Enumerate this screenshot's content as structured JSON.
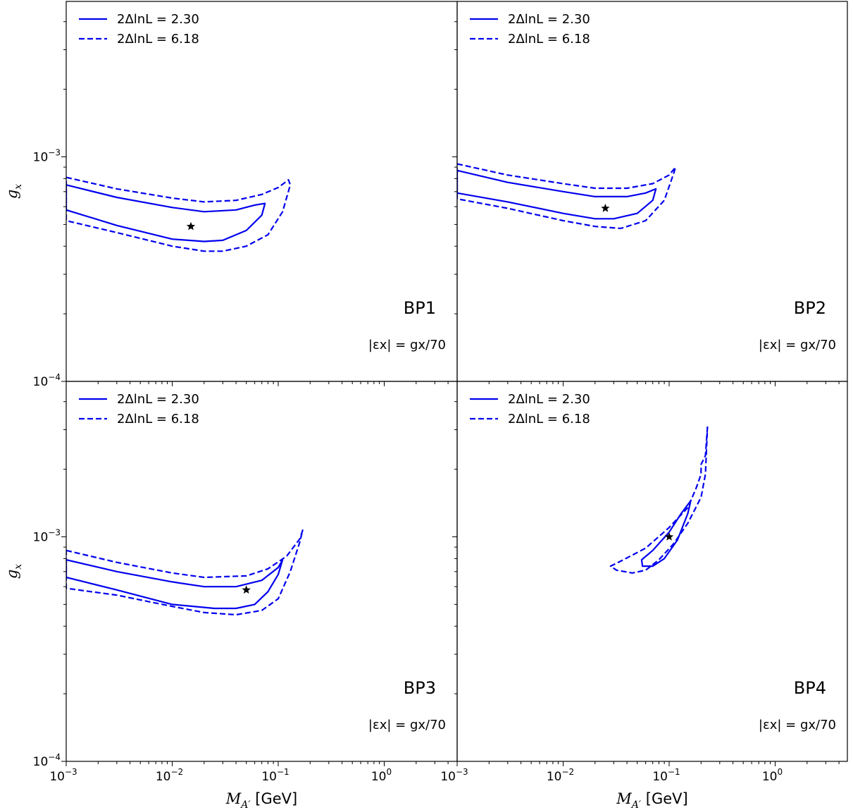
{
  "chart_data": [
    {
      "type": "line",
      "label": "BP1",
      "annotation": "|εx| = gx/70",
      "xscale": "log",
      "yscale": "log",
      "xlim": [
        0.001,
        5.0
      ],
      "ylim": [
        0.0001,
        0.005
      ],
      "legend_position": "top-left",
      "grid": false,
      "series": [
        {
          "name": "2ΔlnL = 2.30",
          "style": "solid",
          "color": "#0000ee",
          "closed": true,
          "points": [
            [
              0.001,
              0.00075
            ],
            [
              0.003,
              0.00066
            ],
            [
              0.01,
              0.000595
            ],
            [
              0.02,
              0.00057
            ],
            [
              0.04,
              0.00058
            ],
            [
              0.06,
              0.00061
            ],
            [
              0.075,
              0.00062
            ],
            [
              0.07,
              0.00055
            ],
            [
              0.05,
              0.00047
            ],
            [
              0.03,
              0.000425
            ],
            [
              0.02,
              0.00042
            ],
            [
              0.01,
              0.00043
            ],
            [
              0.003,
              0.000495
            ],
            [
              0.001,
              0.00058
            ]
          ]
        },
        {
          "name": "2ΔlnL = 6.18",
          "style": "dashed",
          "color": "#0000ee",
          "closed": true,
          "points": [
            [
              0.001,
              0.00081
            ],
            [
              0.003,
              0.00072
            ],
            [
              0.01,
              0.000655
            ],
            [
              0.02,
              0.00063
            ],
            [
              0.04,
              0.00064
            ],
            [
              0.07,
              0.00068
            ],
            [
              0.1,
              0.00073
            ],
            [
              0.125,
              0.00079
            ],
            [
              0.13,
              0.00075
            ],
            [
              0.11,
              0.00057
            ],
            [
              0.08,
              0.00045
            ],
            [
              0.05,
              0.0004
            ],
            [
              0.03,
              0.00038
            ],
            [
              0.02,
              0.00038
            ],
            [
              0.01,
              0.0004
            ],
            [
              0.003,
              0.00046
            ],
            [
              0.001,
              0.00052
            ]
          ]
        }
      ],
      "best_fit": [
        0.015,
        0.00049
      ]
    },
    {
      "type": "line",
      "label": "BP2",
      "annotation": "|εx| = gx/70",
      "xscale": "log",
      "yscale": "log",
      "xlim": [
        0.001,
        5.0
      ],
      "ylim": [
        0.0001,
        0.005
      ],
      "legend_position": "top-left",
      "grid": false,
      "series": [
        {
          "name": "2ΔlnL = 2.30",
          "style": "solid",
          "color": "#0000ee",
          "closed": true,
          "points": [
            [
              0.001,
              0.00087
            ],
            [
              0.003,
              0.00077
            ],
            [
              0.01,
              0.0007
            ],
            [
              0.02,
              0.000665
            ],
            [
              0.04,
              0.000665
            ],
            [
              0.06,
              0.00069
            ],
            [
              0.075,
              0.00072
            ],
            [
              0.07,
              0.00064
            ],
            [
              0.05,
              0.00056
            ],
            [
              0.03,
              0.00053
            ],
            [
              0.02,
              0.00053
            ],
            [
              0.01,
              0.00056
            ],
            [
              0.003,
              0.00063
            ],
            [
              0.001,
              0.00069
            ]
          ]
        },
        {
          "name": "2ΔlnL = 6.18",
          "style": "dashed",
          "color": "#0000ee",
          "closed": true,
          "points": [
            [
              0.001,
              0.00093
            ],
            [
              0.003,
              0.00083
            ],
            [
              0.01,
              0.00076
            ],
            [
              0.02,
              0.000725
            ],
            [
              0.04,
              0.000725
            ],
            [
              0.07,
              0.00076
            ],
            [
              0.1,
              0.00083
            ],
            [
              0.115,
              0.0009
            ],
            [
              0.11,
              0.00084
            ],
            [
              0.09,
              0.00064
            ],
            [
              0.06,
              0.00052
            ],
            [
              0.035,
              0.00048
            ],
            [
              0.02,
              0.00049
            ],
            [
              0.01,
              0.00052
            ],
            [
              0.003,
              0.00059
            ],
            [
              0.001,
              0.00065
            ]
          ]
        }
      ],
      "best_fit": [
        0.025,
        0.00059
      ]
    },
    {
      "type": "line",
      "label": "BP3",
      "annotation": "|εx| = gx/70",
      "xscale": "log",
      "yscale": "log",
      "xlim": [
        0.001,
        5.0
      ],
      "ylim": [
        0.0001,
        0.005
      ],
      "xlabel": "M_A' [GeV]",
      "ylabel": "g_x",
      "legend_position": "top-left",
      "grid": false,
      "series": [
        {
          "name": "2ΔlnL = 2.30",
          "style": "solid",
          "color": "#0000ee",
          "closed": true,
          "points": [
            [
              0.001,
              0.00079
            ],
            [
              0.003,
              0.0007
            ],
            [
              0.01,
              0.00063
            ],
            [
              0.02,
              0.0006
            ],
            [
              0.04,
              0.0006
            ],
            [
              0.07,
              0.00064
            ],
            [
              0.1,
              0.00073
            ],
            [
              0.11,
              0.00079
            ],
            [
              0.1,
              0.00068
            ],
            [
              0.08,
              0.00057
            ],
            [
              0.06,
              0.0005
            ],
            [
              0.04,
              0.00048
            ],
            [
              0.025,
              0.00048
            ],
            [
              0.01,
              0.0005
            ],
            [
              0.003,
              0.00058
            ],
            [
              0.001,
              0.00066
            ]
          ]
        },
        {
          "name": "2ΔlnL = 6.18",
          "style": "dashed",
          "color": "#0000ee",
          "closed": true,
          "points": [
            [
              0.001,
              0.00087
            ],
            [
              0.003,
              0.00077
            ],
            [
              0.01,
              0.00069
            ],
            [
              0.02,
              0.00066
            ],
            [
              0.05,
              0.00067
            ],
            [
              0.08,
              0.00072
            ],
            [
              0.12,
              0.00082
            ],
            [
              0.16,
              0.00098
            ],
            [
              0.17,
              0.00107
            ],
            [
              0.16,
              0.00095
            ],
            [
              0.13,
              0.0007
            ],
            [
              0.1,
              0.00053
            ],
            [
              0.07,
              0.00047
            ],
            [
              0.04,
              0.00045
            ],
            [
              0.02,
              0.00046
            ],
            [
              0.01,
              0.00049
            ],
            [
              0.003,
              0.00055
            ],
            [
              0.001,
              0.00059
            ]
          ]
        }
      ],
      "best_fit": [
        0.05,
        0.00058
      ]
    },
    {
      "type": "line",
      "label": "BP4",
      "annotation": "|εx| = gx/70",
      "xscale": "log",
      "yscale": "log",
      "xlim": [
        0.001,
        5.0
      ],
      "ylim": [
        0.0001,
        0.005
      ],
      "xlabel": "M_A' [GeV]",
      "legend_position": "top-left",
      "grid": false,
      "series": [
        {
          "name": "2ΔlnL = 2.30",
          "style": "solid",
          "color": "#0000ee",
          "closed": true,
          "points": [
            [
              0.055,
              0.00079
            ],
            [
              0.07,
              0.00087
            ],
            [
              0.1,
              0.00105
            ],
            [
              0.13,
              0.00127
            ],
            [
              0.16,
              0.00145
            ],
            [
              0.15,
              0.00127
            ],
            [
              0.12,
              0.00097
            ],
            [
              0.09,
              0.0008
            ],
            [
              0.07,
              0.00074
            ],
            [
              0.056,
              0.00074
            ],
            [
              0.055,
              0.00079
            ]
          ]
        },
        {
          "name": "2ΔlnL = 6.18",
          "style": "dashed",
          "color": "#0000ee",
          "closed": false,
          "points": [
            [
              0.23,
              0.0031
            ],
            [
              0.22,
              0.0023
            ],
            [
              0.2,
              0.0021
            ],
            [
              0.2,
              0.0019
            ],
            [
              0.18,
              0.00165
            ],
            [
              0.15,
              0.00135
            ],
            [
              0.1,
              0.0011
            ],
            [
              0.06,
              0.00089
            ],
            [
              0.035,
              0.00078
            ],
            [
              0.028,
              0.00074
            ],
            [
              0.032,
              0.00071
            ],
            [
              0.045,
              0.00069
            ],
            [
              0.06,
              0.00071
            ],
            [
              0.08,
              0.00079
            ],
            [
              0.11,
              0.00093
            ],
            [
              0.15,
              0.00115
            ],
            [
              0.2,
              0.0015
            ],
            [
              0.22,
              0.0019
            ],
            [
              0.23,
              0.0031
            ]
          ]
        }
      ],
      "best_fit": [
        0.1,
        0.001
      ]
    }
  ],
  "tick_labels": {
    "x": [
      {
        "base": "10",
        "exp": "−3",
        "value": 0.001
      },
      {
        "base": "10",
        "exp": "−2",
        "value": 0.01
      },
      {
        "base": "10",
        "exp": "−1",
        "value": 0.1
      },
      {
        "base": "10",
        "exp": "0",
        "value": 1
      }
    ],
    "y": [
      {
        "base": "10",
        "exp": "−4",
        "value": 0.0001
      },
      {
        "base": "10",
        "exp": "−3",
        "value": 0.001
      }
    ]
  },
  "axis_labels": {
    "x_main": "M",
    "x_sub": "A′",
    "x_unit": " [GeV]",
    "y_main": "g",
    "y_sub": "x"
  },
  "legend": {
    "solid_prefix": "2ΔlnL",
    "solid_value": " = 2.30",
    "dashed_prefix": "2ΔlnL",
    "dashed_value": " = 6.18"
  },
  "colors": {
    "contour": "#0000ee",
    "marker": "#000000",
    "axes": "#000000"
  }
}
